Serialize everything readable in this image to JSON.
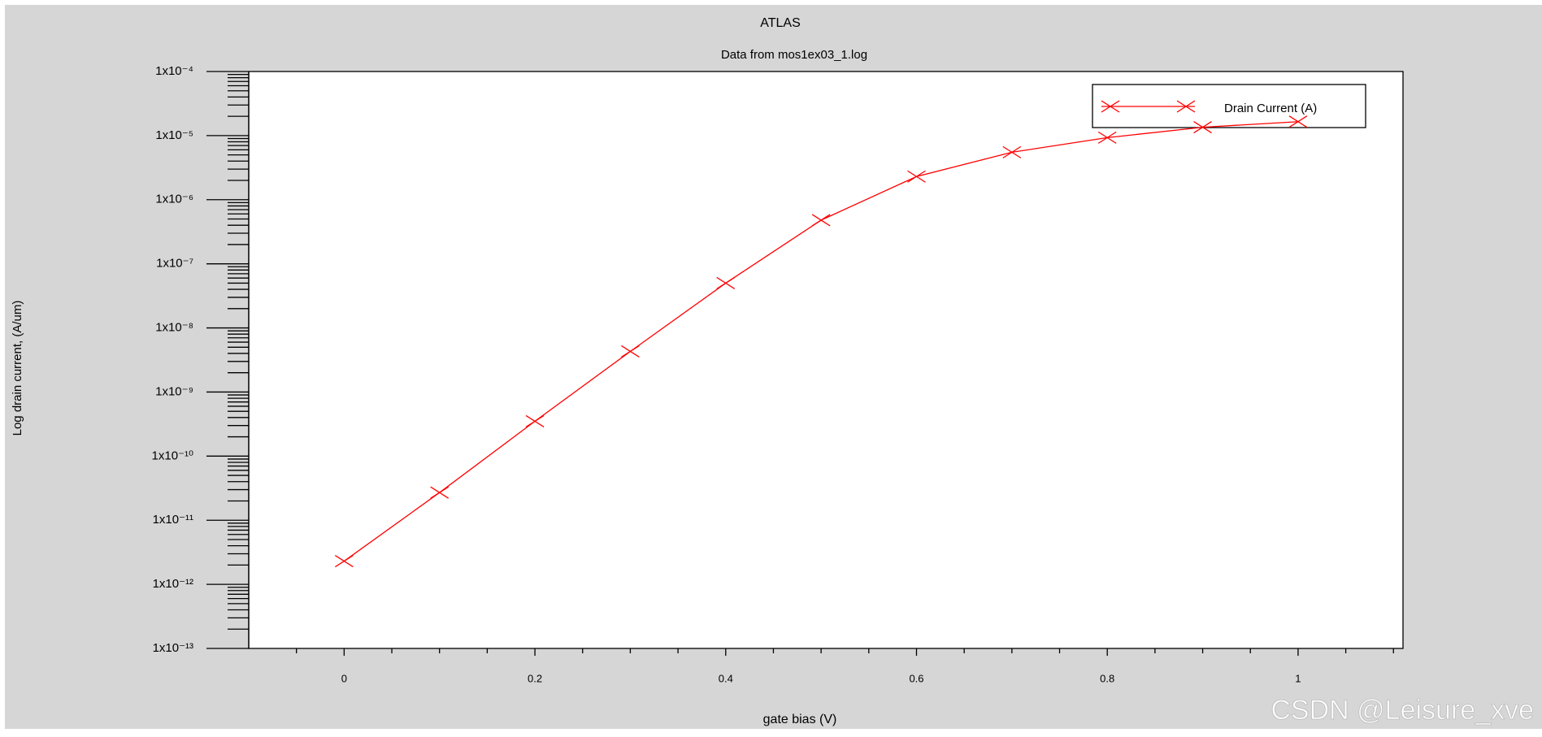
{
  "chart_data": {
    "type": "line",
    "title": "ATLAS",
    "subtitle": "Data from mos1ex03_1.log",
    "x_label": "gate bias (V)",
    "y_label": "Log drain current, (A/um)",
    "x": [
      0,
      0.1,
      0.2,
      0.3,
      0.4,
      0.5,
      0.6,
      0.7,
      0.8,
      0.9,
      1
    ],
    "series": [
      {
        "name": "Drain Current (A)",
        "color": "#ff0000",
        "values": [
          2.3e-12,
          2.7e-11,
          3.5e-10,
          4.3e-09,
          5e-08,
          4.8e-07,
          2.3e-06,
          5.5e-06,
          9.3e-06,
          1.35e-05,
          1.65e-05
        ]
      }
    ],
    "xlim": [
      -0.1,
      1.11
    ],
    "xticks": [
      0,
      0.2,
      0.4,
      0.6,
      0.8,
      1
    ],
    "ylim": [
      1e-13,
      0.0001
    ],
    "y_scale": "log",
    "yticks": [
      {
        "value": 1e-13,
        "label": "1x10⁻¹³"
      },
      {
        "value": 1e-12,
        "label": "1x10⁻¹²"
      },
      {
        "value": 1e-11,
        "label": "1x10⁻¹¹"
      },
      {
        "value": 1e-10,
        "label": "1x10⁻¹⁰"
      },
      {
        "value": 1e-09,
        "label": "1x10⁻⁹"
      },
      {
        "value": 1e-08,
        "label": "1x10⁻⁸"
      },
      {
        "value": 1e-07,
        "label": "1x10⁻⁷"
      },
      {
        "value": 1e-06,
        "label": "1x10⁻⁶"
      },
      {
        "value": 1e-05,
        "label": "1x10⁻⁵"
      },
      {
        "value": 0.0001,
        "label": "1x10⁻⁴"
      }
    ],
    "legend": "top-right",
    "watermark": "CSDN @Leisure_xve"
  }
}
